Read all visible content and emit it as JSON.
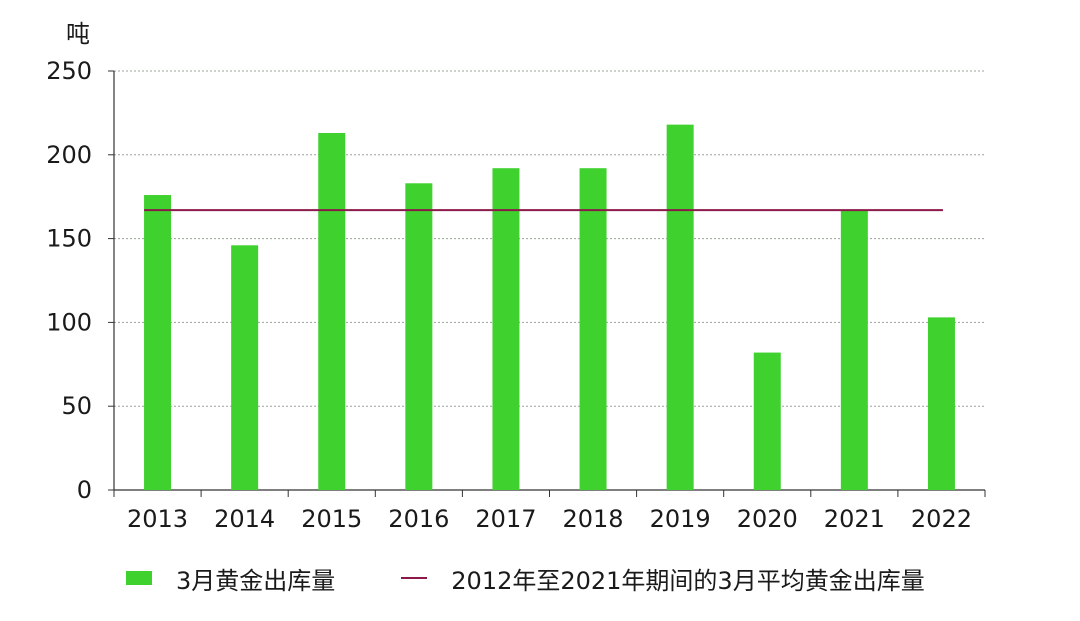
{
  "chart_data": {
    "type": "bar",
    "ylabel": "吨",
    "categories": [
      "2013",
      "2014",
      "2015",
      "2016",
      "2017",
      "2018",
      "2019",
      "2020",
      "2021",
      "2022"
    ],
    "series": [
      {
        "name": "3月黄金出库量",
        "values": [
          176,
          146,
          213,
          183,
          192,
          192,
          218,
          82,
          167,
          103
        ]
      }
    ],
    "reference_line": {
      "name": "2012年至2021年期间的3月平均黄金出库量",
      "value": 167
    },
    "ylim": [
      0,
      250
    ],
    "yticks": [
      0,
      50,
      100,
      150,
      200,
      250
    ],
    "grid": true,
    "legend_position": "bottom",
    "colors": {
      "bar": "#3fd12e",
      "reference_line": "#8b1a4a",
      "grid": "#9aa39a",
      "axis": "#333333"
    }
  }
}
